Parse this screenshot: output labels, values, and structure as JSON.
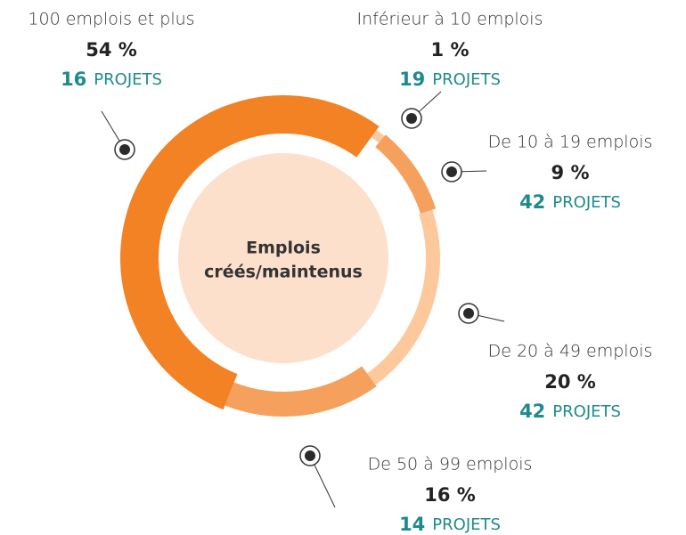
{
  "chart_data": {
    "type": "donut",
    "title": [
      "Emplois",
      "créés/maintenus"
    ],
    "categories": [
      "Inférieur à 10 emplois",
      "De 10 à 19 emplois",
      "De 20 à 49 emplois",
      "De 50 à 99 emplois",
      "100 emplois et plus"
    ],
    "values": [
      1,
      9,
      20,
      16,
      54
    ],
    "value_labels": [
      "1 %",
      "9 %",
      "20 %",
      "16 %",
      "54 %"
    ],
    "projects": [
      19,
      42,
      42,
      14,
      16
    ],
    "projects_unit": "PROJETS",
    "colors": [
      "#fbc9a0",
      "#f5a05c",
      "#fdc99c",
      "#f5a05c",
      "#f28223"
    ],
    "center_color": "#fde0cc",
    "accent_color": "#1f8a8c"
  }
}
